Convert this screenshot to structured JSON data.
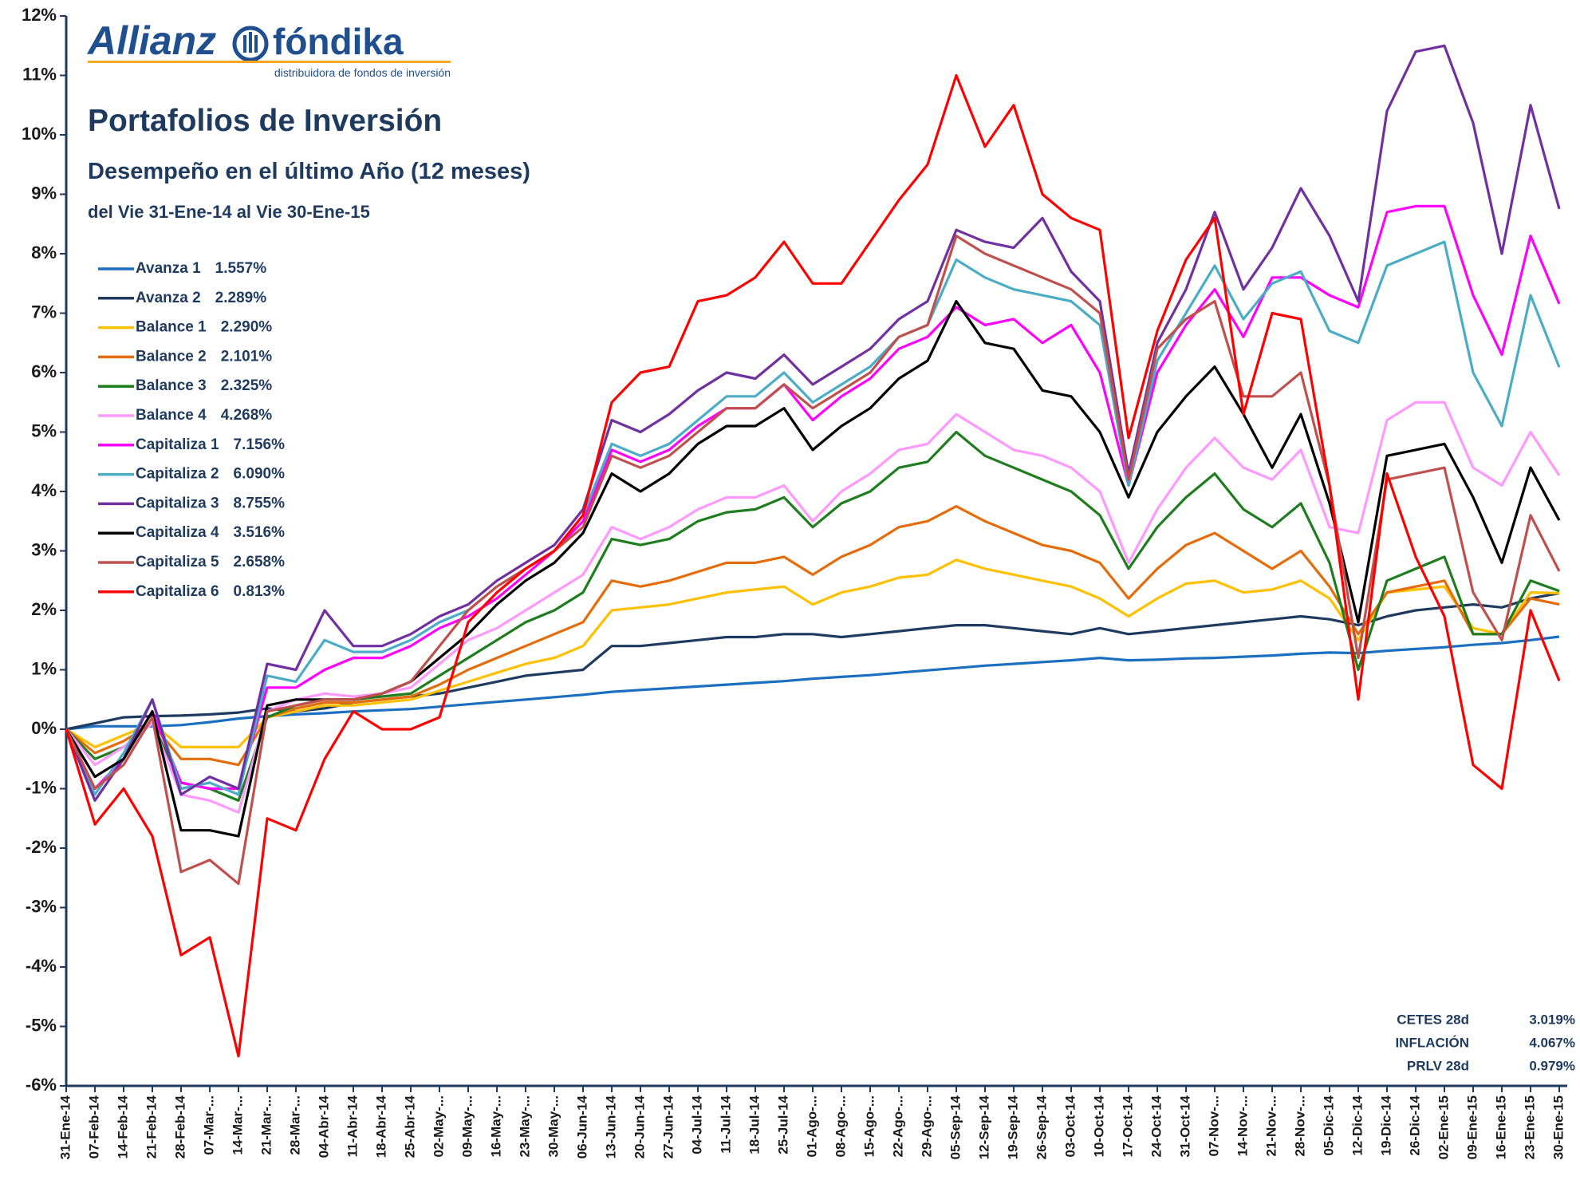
{
  "chart_data": {
    "type": "line",
    "logo": {
      "brand": "Allianz",
      "partner": "fóndika",
      "tagline": "distribuidora de fondos de inversión"
    },
    "title": "Portafolios de Inversión",
    "subtitle": "Desempeño en el último Año (12 meses)",
    "date_range": "del Vie 31-Ene-14 al Vie 30-Ene-15",
    "categories": [
      "31-Ene-14",
      "07-Feb-14",
      "14-Feb-14",
      "21-Feb-14",
      "28-Feb-14",
      "07-Mar-...",
      "14-Mar-...",
      "21-Mar-...",
      "28-Mar-...",
      "04-Abr-14",
      "11-Abr-14",
      "18-Abr-14",
      "25-Abr-14",
      "02-May-...",
      "09-May-...",
      "16-May-...",
      "23-May-...",
      "30-May-...",
      "06-Jun-14",
      "13-Jun-14",
      "20-Jun-14",
      "27-Jun-14",
      "04-Jul-14",
      "11-Jul-14",
      "18-Jul-14",
      "25-Jul-14",
      "01-Ago-...",
      "08-Ago-...",
      "15-Ago-...",
      "22-Ago-...",
      "29-Ago-...",
      "05-Sep-14",
      "12-Sep-14",
      "19-Sep-14",
      "26-Sep-14",
      "03-Oct-14",
      "10-Oct-14",
      "17-Oct-14",
      "24-Oct-14",
      "31-Oct-14",
      "07-Nov-...",
      "14-Nov-...",
      "21-Nov-...",
      "28-Nov-...",
      "05-Dic-14",
      "12-Dic-14",
      "19-Dic-14",
      "26-Dic-14",
      "02-Ene-15",
      "09-Ene-15",
      "16-Ene-15",
      "23-Ene-15",
      "30-Ene-15"
    ],
    "ylim": [
      -6,
      12
    ],
    "yticks": [
      {
        "value": -6,
        "label": "-6%"
      },
      {
        "value": -5,
        "label": "-5%"
      },
      {
        "value": -4,
        "label": "-4%"
      },
      {
        "value": -3,
        "label": "-3%"
      },
      {
        "value": -2,
        "label": "-2%"
      },
      {
        "value": -1,
        "label": "-1%"
      },
      {
        "value": 0,
        "label": "0%"
      },
      {
        "value": 1,
        "label": "1%"
      },
      {
        "value": 2,
        "label": "2%"
      },
      {
        "value": 3,
        "label": "3%"
      },
      {
        "value": 4,
        "label": "4%"
      },
      {
        "value": 5,
        "label": "5%"
      },
      {
        "value": 6,
        "label": "6%"
      },
      {
        "value": 7,
        "label": "7%"
      },
      {
        "value": 8,
        "label": "8%"
      },
      {
        "value": 9,
        "label": "9%"
      },
      {
        "value": 10,
        "label": "10%"
      },
      {
        "value": 11,
        "label": "11%"
      },
      {
        "value": 12,
        "label": "12%"
      }
    ],
    "grid": false,
    "series": [
      {
        "name": "Avanza 1",
        "return_label": "1.557%",
        "color": "#1a6fc0",
        "values": [
          0,
          0.05,
          0.05,
          0.05,
          0.07,
          0.12,
          0.18,
          0.22,
          0.25,
          0.27,
          0.3,
          0.32,
          0.34,
          0.38,
          0.42,
          0.46,
          0.5,
          0.54,
          0.58,
          0.63,
          0.66,
          0.69,
          0.72,
          0.75,
          0.78,
          0.81,
          0.85,
          0.88,
          0.91,
          0.95,
          0.99,
          1.03,
          1.07,
          1.1,
          1.13,
          1.16,
          1.2,
          1.16,
          1.17,
          1.19,
          1.2,
          1.22,
          1.24,
          1.27,
          1.29,
          1.28,
          1.32,
          1.35,
          1.38,
          1.42,
          1.45,
          1.5,
          1.557
        ]
      },
      {
        "name": "Avanza 2",
        "return_label": "2.289%",
        "color": "#1f3a5f",
        "values": [
          0,
          0.1,
          0.2,
          0.22,
          0.23,
          0.25,
          0.28,
          0.35,
          0.3,
          0.35,
          0.45,
          0.5,
          0.55,
          0.6,
          0.7,
          0.8,
          0.9,
          0.95,
          1.0,
          1.4,
          1.4,
          1.45,
          1.5,
          1.55,
          1.55,
          1.6,
          1.6,
          1.55,
          1.6,
          1.65,
          1.7,
          1.75,
          1.75,
          1.7,
          1.65,
          1.6,
          1.7,
          1.6,
          1.65,
          1.7,
          1.75,
          1.8,
          1.85,
          1.9,
          1.85,
          1.75,
          1.9,
          2.0,
          2.05,
          2.1,
          2.05,
          2.2,
          2.289
        ]
      },
      {
        "name": "Balance 1",
        "return_label": "2.290%",
        "color": "#ffc000",
        "values": [
          0,
          -0.3,
          -0.1,
          0.1,
          -0.3,
          -0.3,
          -0.3,
          0.2,
          0.3,
          0.4,
          0.4,
          0.45,
          0.5,
          0.65,
          0.8,
          0.95,
          1.1,
          1.2,
          1.4,
          2.0,
          2.05,
          2.1,
          2.2,
          2.3,
          2.35,
          2.4,
          2.1,
          2.3,
          2.4,
          2.55,
          2.6,
          2.85,
          2.7,
          2.6,
          2.5,
          2.4,
          2.2,
          1.9,
          2.2,
          2.45,
          2.5,
          2.3,
          2.35,
          2.5,
          2.2,
          1.5,
          2.3,
          2.35,
          2.4,
          1.7,
          1.6,
          2.3,
          2.29
        ]
      },
      {
        "name": "Balance 2",
        "return_label": "2.101%",
        "color": "#e46c0a",
        "values": [
          0,
          -0.4,
          -0.2,
          0.1,
          -0.5,
          -0.5,
          -0.6,
          0.2,
          0.35,
          0.45,
          0.45,
          0.5,
          0.55,
          0.75,
          1.0,
          1.2,
          1.4,
          1.6,
          1.8,
          2.5,
          2.4,
          2.5,
          2.65,
          2.8,
          2.8,
          2.9,
          2.6,
          2.9,
          3.1,
          3.4,
          3.5,
          3.75,
          3.5,
          3.3,
          3.1,
          3.0,
          2.8,
          2.2,
          2.7,
          3.1,
          3.3,
          3.0,
          2.7,
          3.0,
          2.4,
          1.6,
          2.3,
          2.4,
          2.5,
          1.6,
          1.6,
          2.2,
          2.101
        ]
      },
      {
        "name": "Balance 3",
        "return_label": "2.325%",
        "color": "#1e7d1e",
        "values": [
          0,
          -0.5,
          -0.3,
          0.1,
          -0.9,
          -1.0,
          -1.2,
          0.2,
          0.4,
          0.5,
          0.5,
          0.55,
          0.6,
          0.9,
          1.2,
          1.5,
          1.8,
          2.0,
          2.3,
          3.2,
          3.1,
          3.2,
          3.5,
          3.65,
          3.7,
          3.9,
          3.4,
          3.8,
          4.0,
          4.4,
          4.5,
          5.0,
          4.6,
          4.4,
          4.2,
          4.0,
          3.6,
          2.7,
          3.4,
          3.9,
          4.3,
          3.7,
          3.4,
          3.8,
          2.8,
          1.0,
          2.5,
          2.7,
          2.9,
          1.6,
          1.6,
          2.5,
          2.325
        ]
      },
      {
        "name": "Balance 4",
        "return_label": "4.268%",
        "color": "#ff99ff",
        "values": [
          0,
          -0.6,
          -0.3,
          0.1,
          -1.1,
          -1.2,
          -1.4,
          0.3,
          0.5,
          0.6,
          0.55,
          0.6,
          0.7,
          1.1,
          1.5,
          1.7,
          2.0,
          2.3,
          2.6,
          3.4,
          3.2,
          3.4,
          3.7,
          3.9,
          3.9,
          4.1,
          3.5,
          4.0,
          4.3,
          4.7,
          4.8,
          5.3,
          5.0,
          4.7,
          4.6,
          4.4,
          4.0,
          2.8,
          3.7,
          4.4,
          4.9,
          4.4,
          4.2,
          4.7,
          3.4,
          3.3,
          5.2,
          5.5,
          5.5,
          4.4,
          4.1,
          5.0,
          4.268
        ]
      },
      {
        "name": "Capitaliza 1",
        "return_label": "7.156%",
        "color": "#ff00ff",
        "values": [
          0,
          -1.0,
          -0.5,
          0.3,
          -0.9,
          -1.0,
          -1.0,
          0.7,
          0.7,
          1.0,
          1.2,
          1.2,
          1.4,
          1.7,
          1.9,
          2.2,
          2.6,
          3.0,
          3.5,
          4.7,
          4.5,
          4.7,
          5.1,
          5.4,
          5.4,
          5.8,
          5.2,
          5.6,
          5.9,
          6.4,
          6.6,
          7.1,
          6.8,
          6.9,
          6.5,
          6.8,
          6.0,
          4.1,
          6.0,
          6.8,
          7.4,
          6.6,
          7.6,
          7.6,
          7.3,
          7.1,
          8.7,
          8.8,
          8.8,
          7.3,
          6.3,
          8.3,
          7.156
        ]
      },
      {
        "name": "Capitaliza 2",
        "return_label": "6.090%",
        "color": "#4bacc6",
        "values": [
          0,
          -1.1,
          -0.4,
          0.5,
          -1.0,
          -0.9,
          -1.1,
          0.9,
          0.8,
          1.5,
          1.3,
          1.3,
          1.5,
          1.8,
          2.0,
          2.4,
          2.7,
          3.0,
          3.6,
          4.8,
          4.6,
          4.8,
          5.2,
          5.6,
          5.6,
          6.0,
          5.5,
          5.8,
          6.1,
          6.6,
          6.8,
          7.9,
          7.6,
          7.4,
          7.3,
          7.2,
          6.8,
          4.1,
          6.2,
          7.0,
          7.8,
          6.9,
          7.5,
          7.7,
          6.7,
          6.5,
          7.8,
          8.0,
          8.2,
          6.0,
          5.1,
          7.3,
          6.09
        ]
      },
      {
        "name": "Capitaliza 3",
        "return_label": "8.755%",
        "color": "#7030a0",
        "values": [
          0,
          -1.2,
          -0.5,
          0.5,
          -1.1,
          -0.8,
          -1.0,
          1.1,
          1.0,
          2.0,
          1.4,
          1.4,
          1.6,
          1.9,
          2.1,
          2.5,
          2.8,
          3.1,
          3.7,
          5.2,
          5.0,
          5.3,
          5.7,
          6.0,
          5.9,
          6.3,
          5.8,
          6.1,
          6.4,
          6.9,
          7.2,
          8.4,
          8.2,
          8.1,
          8.6,
          7.7,
          7.2,
          4.3,
          6.5,
          7.4,
          8.7,
          7.4,
          8.1,
          9.1,
          8.3,
          7.2,
          10.4,
          11.4,
          11.5,
          10.2,
          8.0,
          10.5,
          8.755
        ]
      },
      {
        "name": "Capitaliza 4",
        "return_label": "3.516%",
        "color": "#000000",
        "values": [
          0,
          -0.8,
          -0.5,
          0.3,
          -1.7,
          -1.7,
          -1.8,
          0.4,
          0.5,
          0.5,
          0.5,
          0.6,
          0.8,
          1.2,
          1.6,
          2.1,
          2.5,
          2.8,
          3.3,
          4.3,
          4.0,
          4.3,
          4.8,
          5.1,
          5.1,
          5.4,
          4.7,
          5.1,
          5.4,
          5.9,
          6.2,
          7.2,
          6.5,
          6.4,
          5.7,
          5.6,
          5.0,
          3.9,
          5.0,
          5.6,
          6.1,
          5.3,
          4.4,
          5.3,
          3.8,
          1.8,
          4.6,
          4.7,
          4.8,
          3.9,
          2.8,
          4.4,
          3.516
        ]
      },
      {
        "name": "Capitaliza 5",
        "return_label": "2.658%",
        "color": "#c0504d",
        "values": [
          0,
          -1.0,
          -0.6,
          0.2,
          -2.4,
          -2.2,
          -2.6,
          0.3,
          0.4,
          0.5,
          0.5,
          0.6,
          0.8,
          1.4,
          2.0,
          2.4,
          2.7,
          3.0,
          3.4,
          4.6,
          4.4,
          4.6,
          5.0,
          5.4,
          5.4,
          5.8,
          5.4,
          5.7,
          6.0,
          6.6,
          6.8,
          8.3,
          8.0,
          7.8,
          7.6,
          7.4,
          7.0,
          4.2,
          6.4,
          6.9,
          7.2,
          5.6,
          5.6,
          6.0,
          4.1,
          1.2,
          4.2,
          4.3,
          4.4,
          2.3,
          1.5,
          3.6,
          2.658
        ]
      },
      {
        "name": "Capitaliza 6",
        "return_label": "0.813%",
        "color": "#ff0000",
        "values": [
          0,
          -1.6,
          -1.0,
          -1.8,
          -3.8,
          -3.5,
          -5.5,
          -1.5,
          -1.7,
          -0.5,
          0.3,
          0.0,
          0.0,
          0.2,
          1.8,
          2.3,
          2.7,
          3.0,
          3.6,
          5.5,
          6.0,
          6.1,
          7.2,
          7.3,
          7.6,
          8.2,
          7.5,
          7.5,
          8.2,
          8.9,
          9.5,
          11.0,
          9.8,
          10.5,
          9.0,
          8.6,
          8.4,
          4.9,
          6.7,
          7.9,
          8.6,
          5.3,
          7.0,
          6.9,
          4.1,
          0.5,
          4.3,
          2.9,
          1.9,
          -0.6,
          -1.0,
          2.0,
          0.813
        ]
      }
    ],
    "reference_rates": [
      {
        "name": "CETES 28d",
        "value": "3.019%"
      },
      {
        "name": "INFLACIÓN",
        "value": "4.067%"
      },
      {
        "name": "PRLV 28d",
        "value": "0.979%"
      }
    ]
  }
}
